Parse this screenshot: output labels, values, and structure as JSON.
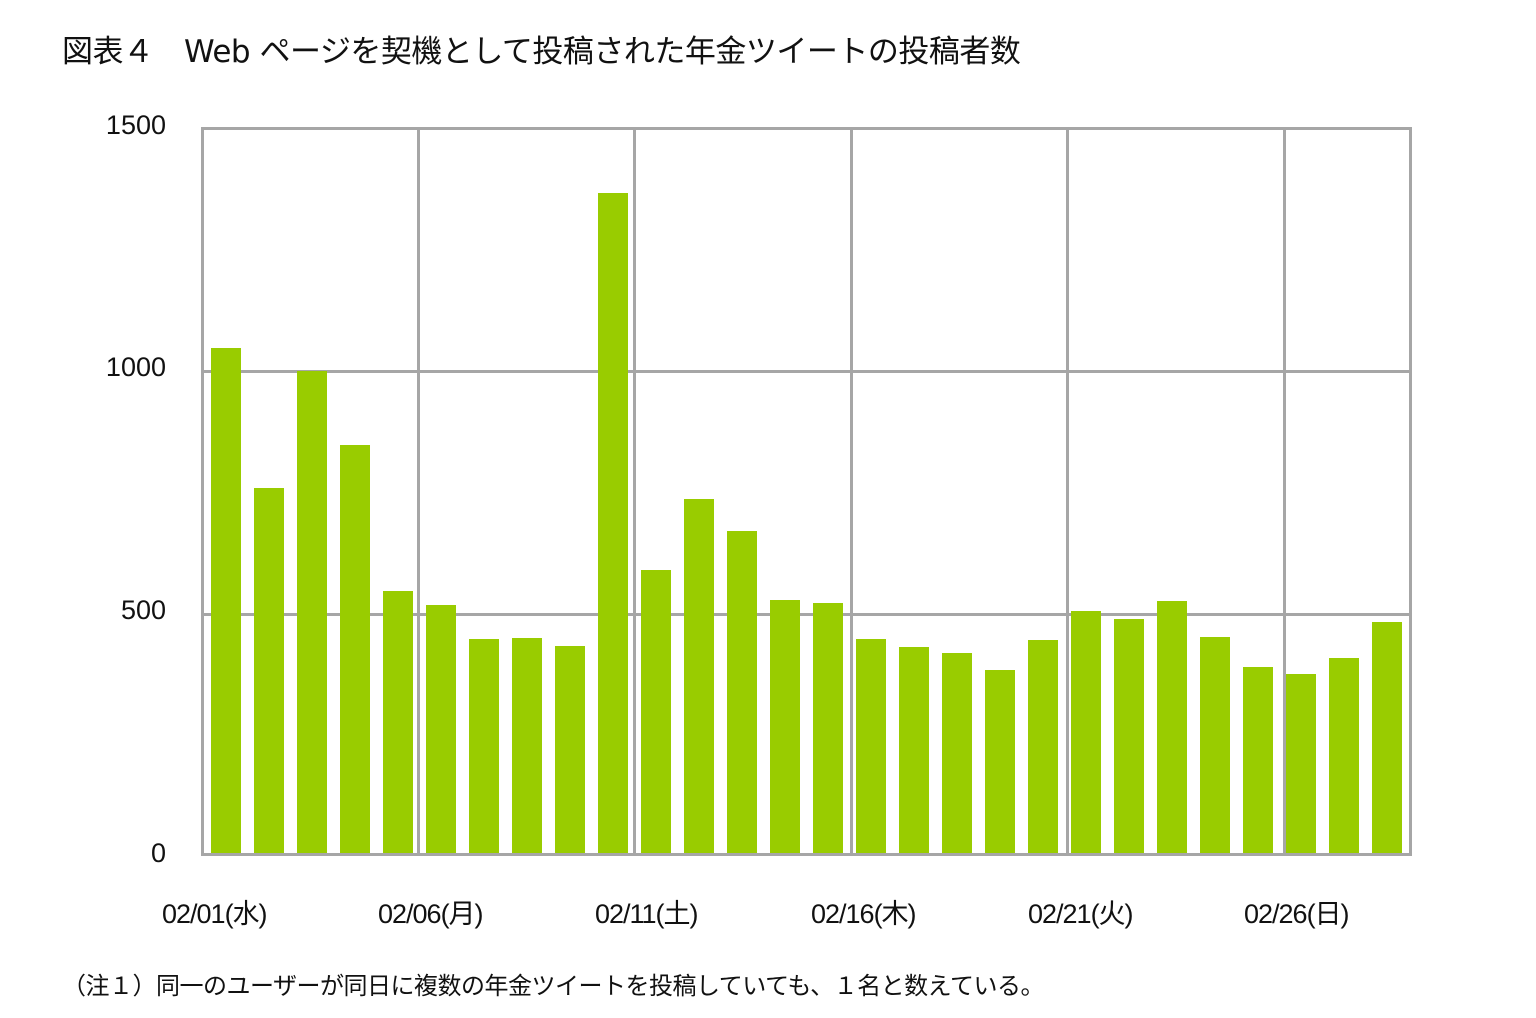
{
  "title": "図表４　Web ページを契機として投稿された年金ツイートの投稿者数",
  "note": "（注１）同一のユーザーが同日に複数の年金ツイートを投稿していても、１名と数えている。",
  "colors": {
    "bar": "#99cc00",
    "grid": "#a6a6a6"
  },
  "y_ticks": [
    "1500",
    "1000",
    "500",
    "0"
  ],
  "x_ticks": [
    "02/01(水)",
    "02/06(月)",
    "02/11(土)",
    "02/16(木)",
    "02/21(火)",
    "02/26(日)"
  ],
  "chart_data": {
    "type": "bar",
    "title": "図表４　Web ページを契機として投稿された年金ツイートの投稿者数",
    "xlabel": "",
    "ylabel": "",
    "ylim": [
      0,
      1500
    ],
    "grid": true,
    "legend": null,
    "x_tick_labels": [
      "02/01(水)",
      "02/06(月)",
      "02/11(土)",
      "02/16(木)",
      "02/21(火)",
      "02/26(日)"
    ],
    "categories": [
      "02/01",
      "02/02",
      "02/03",
      "02/04",
      "02/05",
      "02/06",
      "02/07",
      "02/08",
      "02/09",
      "02/10",
      "02/11",
      "02/12",
      "02/13",
      "02/14",
      "02/15",
      "02/16",
      "02/17",
      "02/18",
      "02/19",
      "02/20",
      "02/21",
      "02/22",
      "02/23",
      "02/24",
      "02/25",
      "02/26",
      "02/27",
      "02/28"
    ],
    "values": [
      1048,
      758,
      1000,
      847,
      543,
      514,
      444,
      447,
      430,
      1370,
      588,
      735,
      669,
      525,
      518,
      444,
      427,
      415,
      379,
      442,
      503,
      485,
      523,
      449,
      385,
      372,
      405,
      480
    ],
    "annotations": [
      "（注１）同一のユーザーが同日に複数の年金ツイートを投稿していても、１名と数えている。"
    ]
  }
}
